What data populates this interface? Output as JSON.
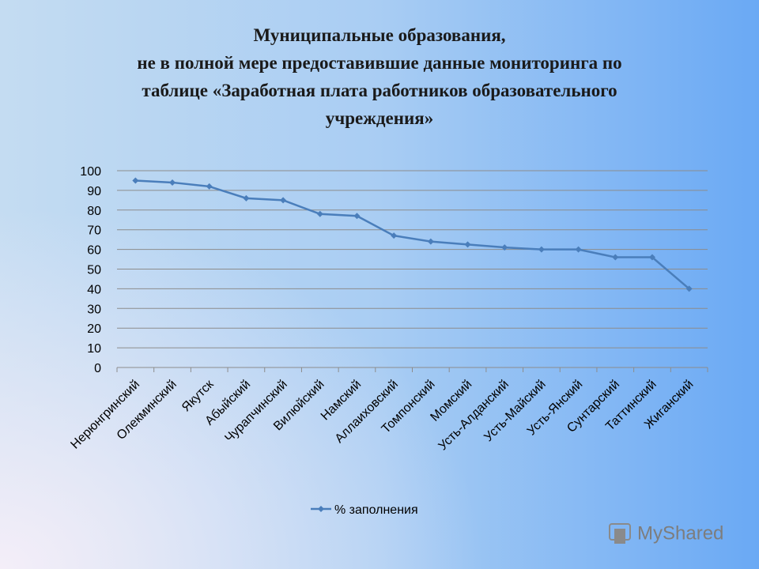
{
  "chart_data": {
    "type": "line",
    "title": [
      "Муниципальные образования,",
      "не в полной мере предоставившие данные мониторинга по",
      "таблице «Заработная плата работников образовательного",
      "учреждения»"
    ],
    "categories": [
      "Нерюнгринский",
      "Олекминский",
      "Якутск",
      "Абыйский",
      "Чурапчинский",
      "Вилюйский",
      "Намский",
      "Аллаиховский",
      "Томпонский",
      "Момский",
      "Усть-Алданский",
      "Усть-Майский",
      "Усть-Янский",
      "Сунтарский",
      "Таттинский",
      "Жиганский"
    ],
    "series": [
      {
        "name": "% заполнения",
        "color": "#4a7ebb",
        "values": [
          95,
          94,
          92,
          86,
          85,
          78,
          77,
          67,
          64,
          62.5,
          61,
          60,
          60,
          56,
          56,
          40
        ]
      }
    ],
    "ylim": [
      0,
      100
    ],
    "yticks": [
      0,
      10,
      20,
      30,
      40,
      50,
      60,
      70,
      80,
      90,
      100
    ],
    "grid": true,
    "legend": "bottom",
    "watermark": "MyShared"
  }
}
